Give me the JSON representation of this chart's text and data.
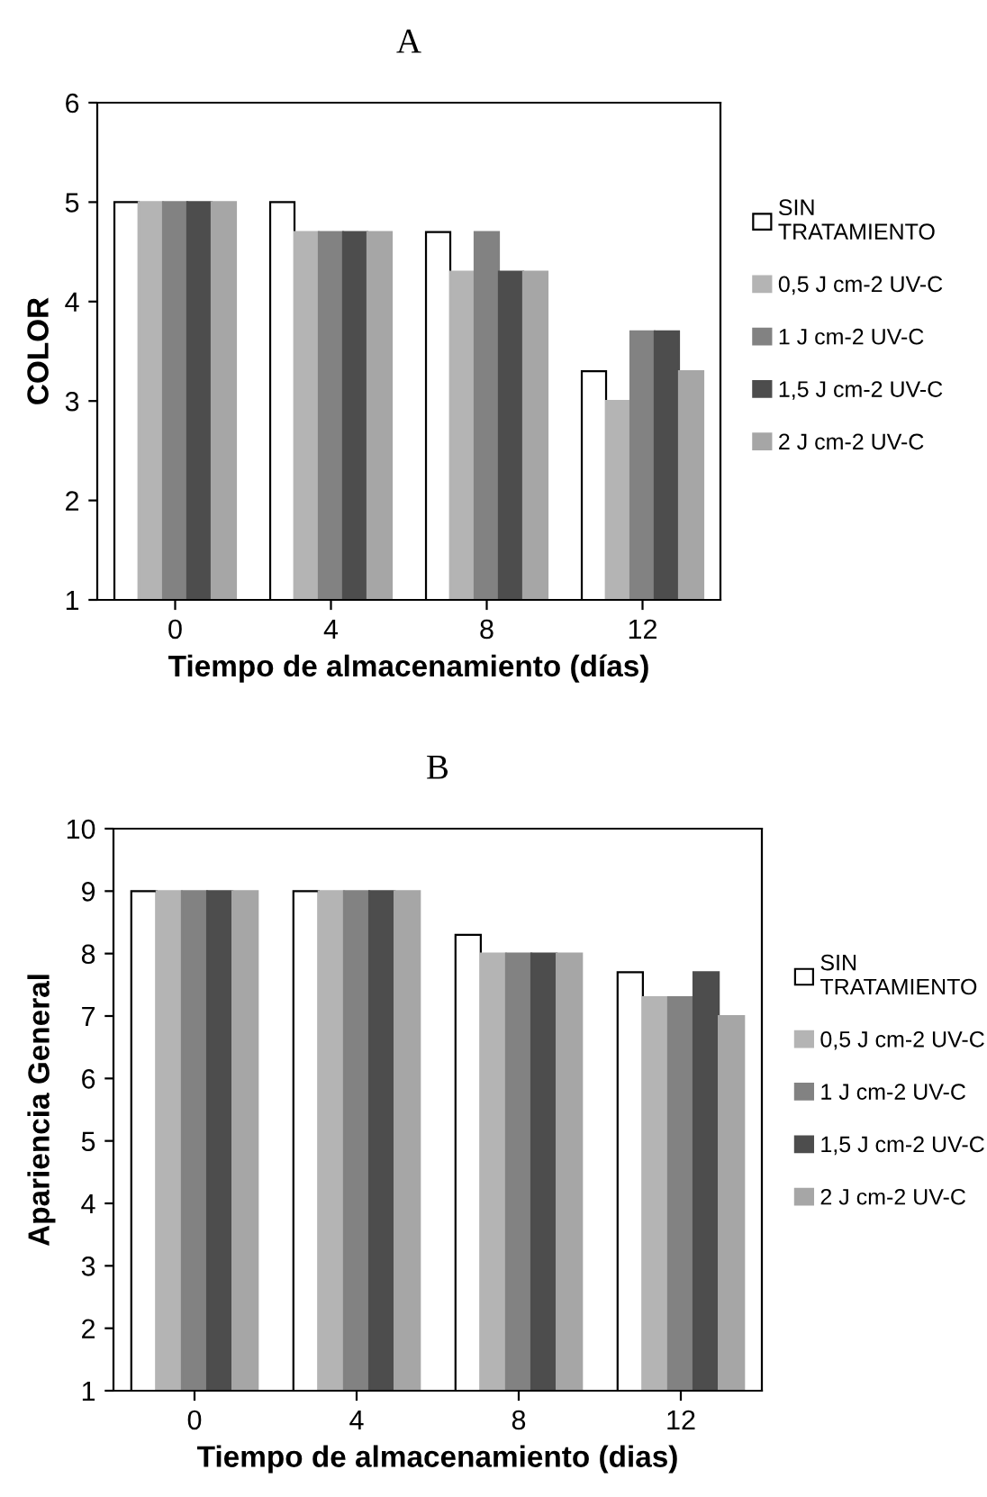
{
  "chart_data": [
    {
      "type": "bar",
      "title": "A",
      "xlabel": "Tiempo de almacenamiento (días)",
      "ylabel": "COLOR",
      "categories": [
        "0",
        "4",
        "8",
        "12"
      ],
      "ylim": [
        1,
        6
      ],
      "yticks": [
        1,
        2,
        3,
        4,
        5,
        6
      ],
      "grid": false,
      "legend": "right",
      "series": [
        {
          "name": "SIN\nTRATAMIENTO",
          "color": "#ffffff",
          "values": [
            5,
            5,
            4.7,
            3.3
          ]
        },
        {
          "name": "0,5 J cm-2 UV-C",
          "color": "#b4b4b4",
          "values": [
            5,
            4.7,
            4.3,
            3
          ]
        },
        {
          "name": "1 J cm-2 UV-C",
          "color": "#828282",
          "values": [
            5,
            4.7,
            4.7,
            3.7
          ]
        },
        {
          "name": "1,5 J cm-2 UV-C",
          "color": "#4d4d4d",
          "values": [
            5,
            4.7,
            4.3,
            3.7
          ]
        },
        {
          "name": "2 J cm-2 UV-C",
          "color": "#a6a6a6",
          "values": [
            5,
            4.7,
            4.3,
            3.3
          ]
        }
      ]
    },
    {
      "type": "bar",
      "title": "B",
      "xlabel": "Tiempo de almacenamiento (dias)",
      "ylabel": "Apariencia General",
      "categories": [
        "0",
        "4",
        "8",
        "12"
      ],
      "ylim": [
        1,
        10
      ],
      "yticks": [
        1,
        2,
        3,
        4,
        5,
        6,
        7,
        8,
        9,
        10
      ],
      "grid": false,
      "legend": "right",
      "series": [
        {
          "name": "SIN\nTRATAMIENTO",
          "color": "#ffffff",
          "values": [
            9,
            9,
            8.3,
            7.7
          ]
        },
        {
          "name": "0,5 J cm-2 UV-C",
          "color": "#b4b4b4",
          "values": [
            9,
            9,
            8,
            7.3
          ]
        },
        {
          "name": "1 J cm-2 UV-C",
          "color": "#828282",
          "values": [
            9,
            9,
            8,
            7.3
          ]
        },
        {
          "name": "1,5 J cm-2 UV-C",
          "color": "#4d4d4d",
          "values": [
            9,
            9,
            8,
            7.7
          ]
        },
        {
          "name": "2 J cm-2 UV-C",
          "color": "#a6a6a6",
          "values": [
            9,
            9,
            8,
            7
          ]
        }
      ]
    }
  ]
}
